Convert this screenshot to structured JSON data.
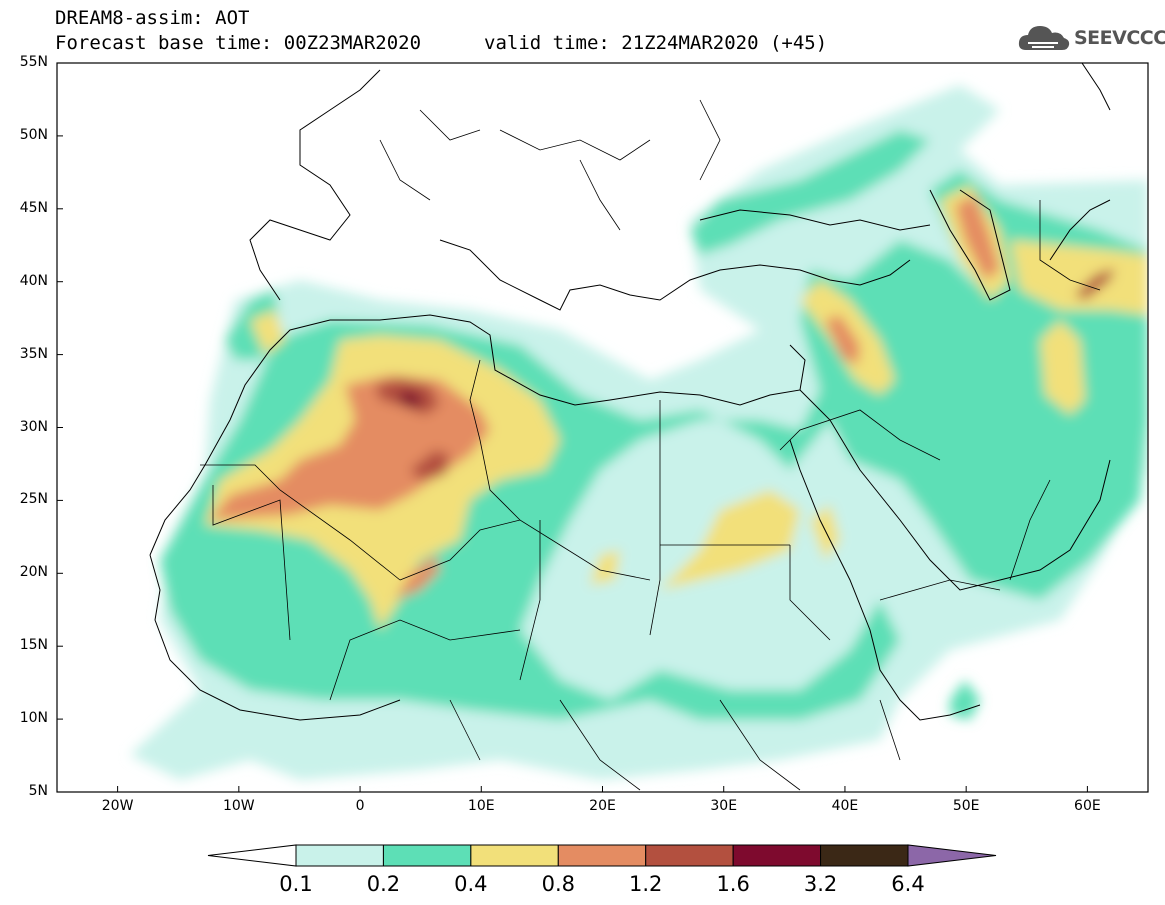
{
  "header": {
    "title_line1": "DREAM8-assim: AOT",
    "title_line2": "Forecast base time: 00Z23MAR2020",
    "valid_time": "valid time: 21Z24MAR2020 (+45)"
  },
  "logo": {
    "text": "SEEVCCC",
    "icon": "cloud-icon"
  },
  "map": {
    "lon_range": [
      -25,
      65
    ],
    "lat_range": [
      5,
      55
    ],
    "lat_ticks": [
      {
        "value": 55,
        "label": "55N"
      },
      {
        "value": 50,
        "label": "50N"
      },
      {
        "value": 45,
        "label": "45N"
      },
      {
        "value": 40,
        "label": "40N"
      },
      {
        "value": 35,
        "label": "35N"
      },
      {
        "value": 30,
        "label": "30N"
      },
      {
        "value": 25,
        "label": "25N"
      },
      {
        "value": 20,
        "label": "20N"
      },
      {
        "value": 15,
        "label": "15N"
      },
      {
        "value": 10,
        "label": "10N"
      },
      {
        "value": 5,
        "label": "5N"
      }
    ],
    "lon_ticks": [
      {
        "value": -20,
        "label": "20W"
      },
      {
        "value": -10,
        "label": "10W"
      },
      {
        "value": 0,
        "label": "0"
      },
      {
        "value": 10,
        "label": "10E"
      },
      {
        "value": 20,
        "label": "20E"
      },
      {
        "value": 30,
        "label": "30E"
      },
      {
        "value": 40,
        "label": "40E"
      },
      {
        "value": 50,
        "label": "50E"
      },
      {
        "value": 60,
        "label": "60E"
      }
    ]
  },
  "colorbar": {
    "levels": [
      "0.1",
      "0.2",
      "0.4",
      "0.8",
      "1.2",
      "1.6",
      "3.2",
      "6.4"
    ],
    "colors": [
      "#ffffff",
      "#c9f2ea",
      "#5ddfb6",
      "#f2e07a",
      "#e48c62",
      "#b3503f",
      "#7e0a2e",
      "#3b2816",
      "#8c67a8"
    ]
  }
}
